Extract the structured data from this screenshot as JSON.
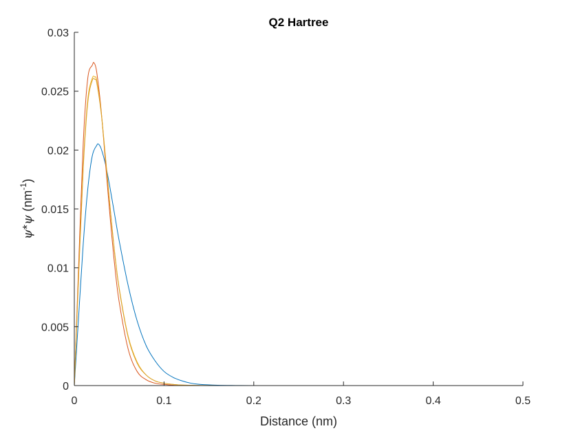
{
  "chart_data": {
    "type": "line",
    "title": "Q2 Hartree",
    "xlabel": "Distance (nm)",
    "ylabel": {
      "psi1": "ψ",
      "star": "*",
      "psi2": "ψ",
      "unit_open": " (nm",
      "unit_exp": "-1",
      "unit_close": ")"
    },
    "xlim": [
      0,
      0.5
    ],
    "ylim": [
      0,
      0.03
    ],
    "xticks": [
      0,
      0.1,
      0.2,
      0.3,
      0.4,
      0.5
    ],
    "xtick_labels": [
      "0",
      "0.1",
      "0.2",
      "0.3",
      "0.4",
      "0.5"
    ],
    "yticks": [
      0,
      0.005,
      0.01,
      0.015,
      0.02,
      0.025,
      0.03
    ],
    "ytick_labels": [
      "0",
      "0.005",
      "0.01",
      "0.015",
      "0.02",
      "0.025",
      "0.03"
    ],
    "grid": false,
    "legend": "none",
    "series": [
      {
        "color": "#0072BD",
        "x": [
          0,
          0.005,
          0.01,
          0.015,
          0.02,
          0.025,
          0.027,
          0.03,
          0.035,
          0.04,
          0.045,
          0.05,
          0.06,
          0.07,
          0.08,
          0.09,
          0.1,
          0.11,
          0.12,
          0.13,
          0.14,
          0.16,
          0.18,
          0.2,
          0.25,
          0.3,
          0.4,
          0.5
        ],
        "y": [
          0,
          0.0061,
          0.0121,
          0.0167,
          0.0195,
          0.0204,
          0.0205,
          0.0201,
          0.0187,
          0.0167,
          0.0145,
          0.0123,
          0.0085,
          0.0055,
          0.0034,
          0.0021,
          0.0012,
          0.0007,
          0.0004,
          0.0002,
          0.0001,
          3e-05,
          1e-05,
          0,
          0,
          0,
          0,
          0
        ]
      },
      {
        "color": "#D95319",
        "x": [
          0,
          0.005,
          0.01,
          0.015,
          0.02,
          0.022,
          0.025,
          0.03,
          0.035,
          0.04,
          0.045,
          0.05,
          0.06,
          0.07,
          0.08,
          0.09,
          0.1,
          0.11,
          0.12,
          0.14,
          0.16,
          0.2,
          0.3,
          0.4,
          0.5
        ],
        "y": [
          0,
          0.0106,
          0.0207,
          0.0261,
          0.0272,
          0.0274,
          0.0266,
          0.0233,
          0.0187,
          0.0142,
          0.0102,
          0.0071,
          0.0031,
          0.0012,
          0.0005,
          0.0002,
          0.0001,
          3e-05,
          1e-05,
          0,
          0,
          0,
          0,
          0,
          0
        ]
      },
      {
        "color": "#EDB120",
        "x": [
          0,
          0.005,
          0.01,
          0.015,
          0.02,
          0.023,
          0.025,
          0.03,
          0.035,
          0.04,
          0.045,
          0.05,
          0.06,
          0.07,
          0.08,
          0.09,
          0.1,
          0.11,
          0.12,
          0.14,
          0.16,
          0.2,
          0.3,
          0.4,
          0.5
        ],
        "y": [
          0,
          0.0098,
          0.0188,
          0.0243,
          0.0261,
          0.0262,
          0.0259,
          0.0232,
          0.0192,
          0.0151,
          0.0113,
          0.0083,
          0.0042,
          0.002,
          0.0009,
          0.0004,
          0.0002,
          0.0001,
          4e-05,
          1e-05,
          0,
          0,
          0,
          0,
          0
        ]
      },
      {
        "color": "#D9A02C",
        "x": [
          0,
          0.005,
          0.01,
          0.015,
          0.02,
          0.023,
          0.025,
          0.03,
          0.035,
          0.04,
          0.045,
          0.05,
          0.06,
          0.07,
          0.08,
          0.09,
          0.1,
          0.11,
          0.12,
          0.14,
          0.16,
          0.2,
          0.3,
          0.4,
          0.5
        ],
        "y": [
          0,
          0.0096,
          0.0185,
          0.024,
          0.0259,
          0.026,
          0.0257,
          0.0231,
          0.0191,
          0.015,
          0.0112,
          0.0082,
          0.0041,
          0.0019,
          0.0009,
          0.0004,
          0.0002,
          0.0001,
          4e-05,
          1e-05,
          0,
          0,
          0,
          0,
          0
        ]
      }
    ]
  }
}
